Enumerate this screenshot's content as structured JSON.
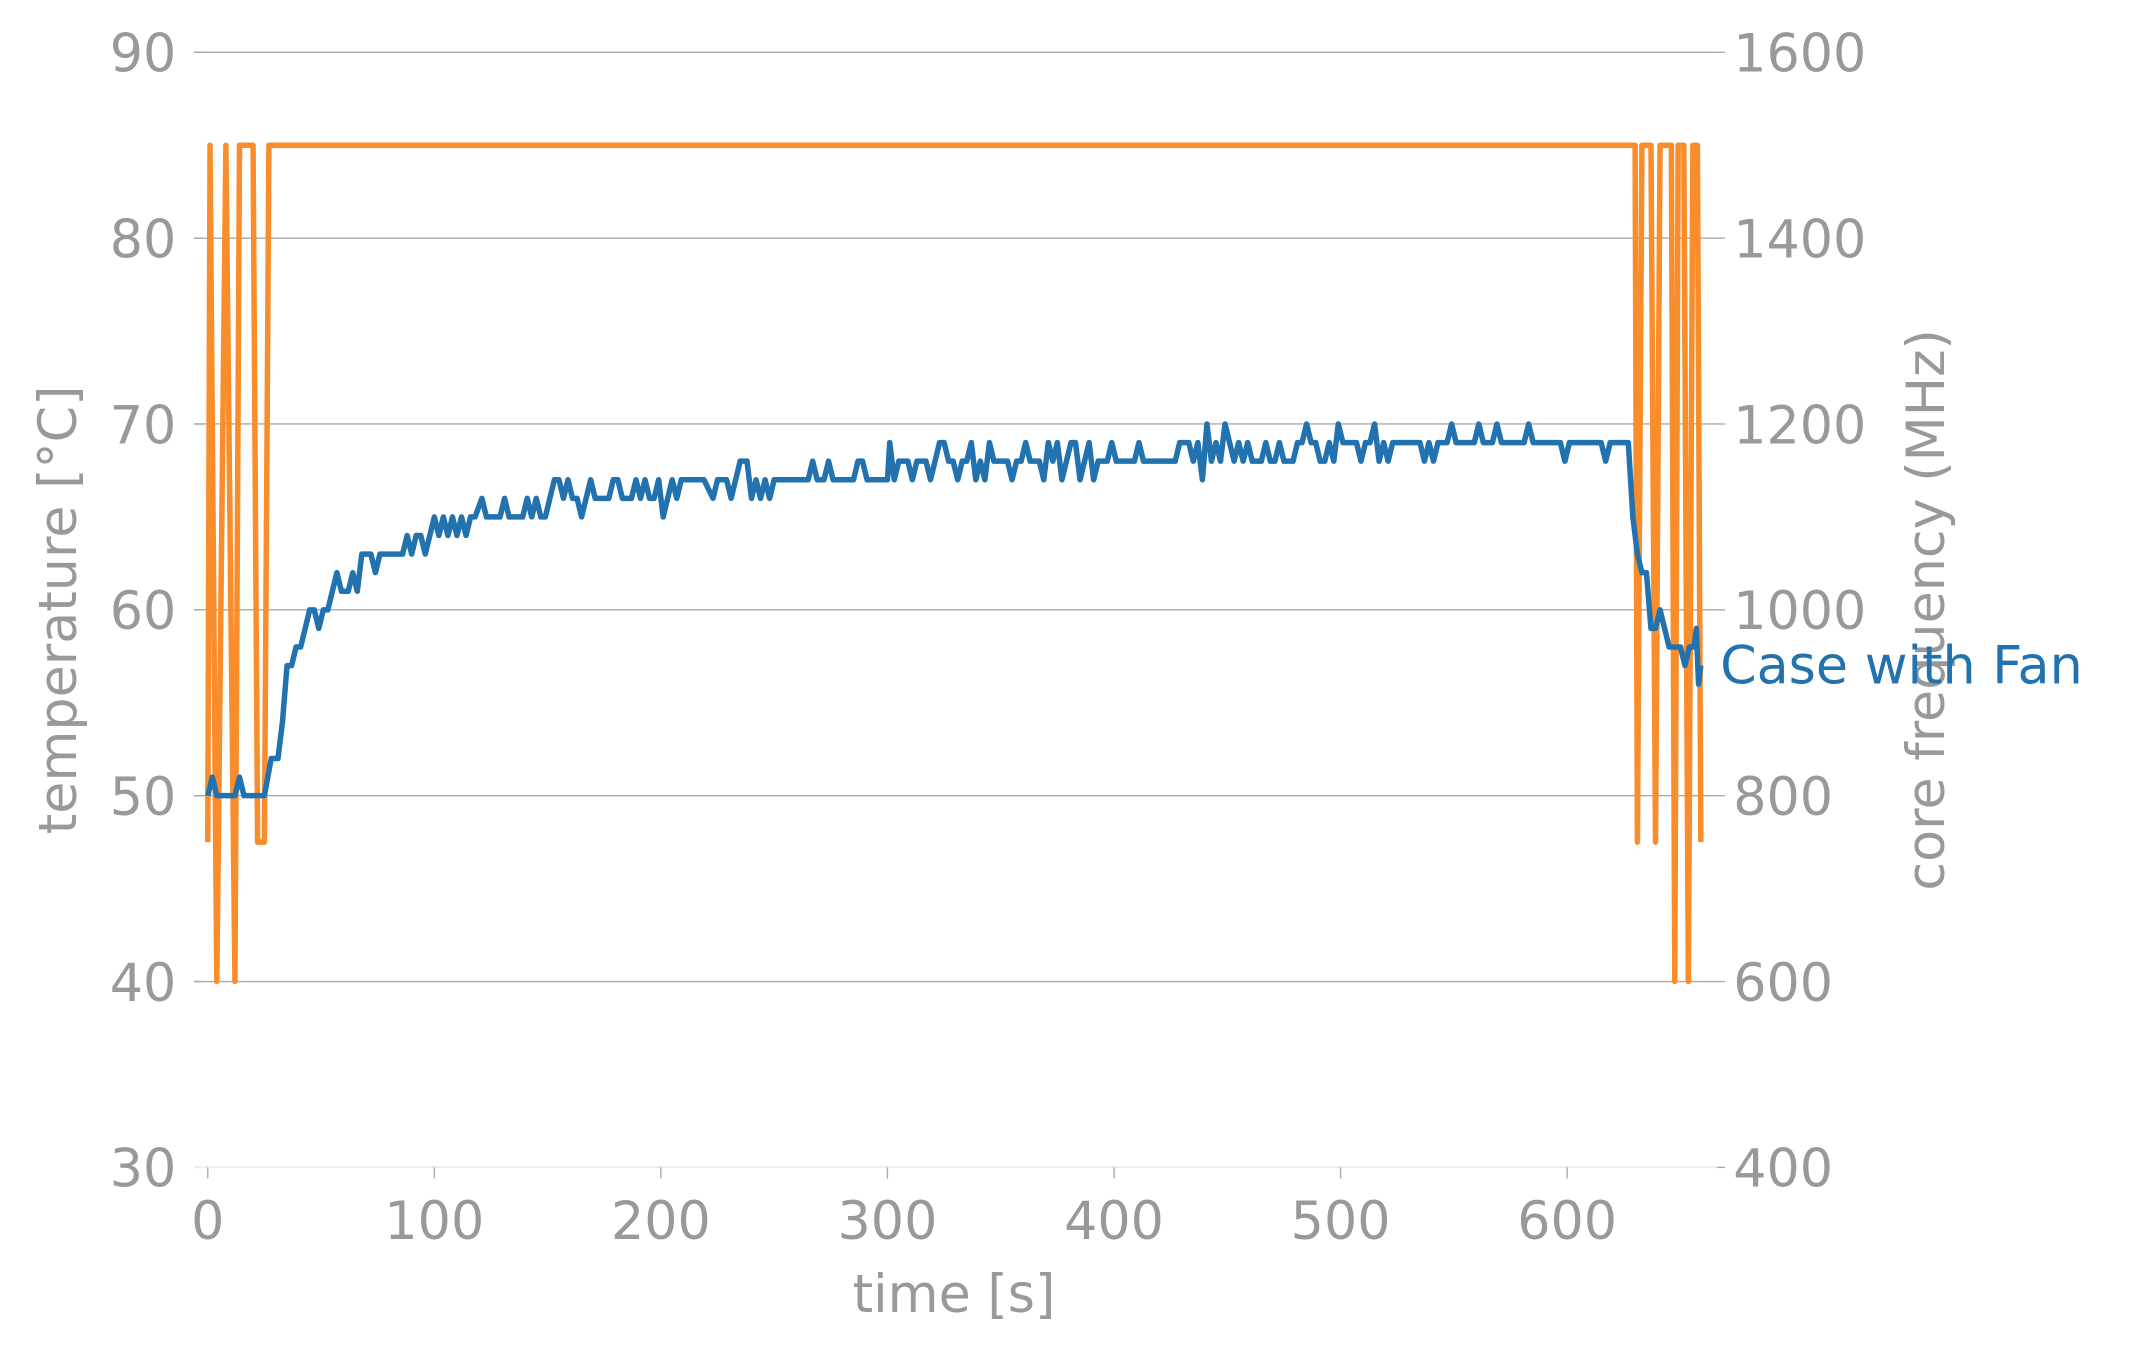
{
  "chart_data": {
    "type": "line",
    "xlabel": "time [s]",
    "ylabel": "temperature [°C]",
    "y2label": "core frequency (MHz)",
    "xlim": [
      -6,
      666
    ],
    "xticks": [
      0,
      100,
      200,
      300,
      400,
      500,
      600
    ],
    "ylim": [
      30,
      90
    ],
    "yticks": [
      30,
      40,
      50,
      60,
      70,
      80,
      90
    ],
    "y2lim": [
      400,
      1600
    ],
    "y2ticks": [
      400,
      600,
      800,
      1000,
      1200,
      1400,
      1600
    ],
    "grid": true,
    "series": [
      {
        "name": "Case with Fan",
        "color": "#2272b0",
        "axis": "y",
        "x": [
          0,
          2,
          4,
          12,
          14,
          16,
          25,
          28,
          31,
          33,
          35,
          37,
          39,
          41,
          45,
          47,
          49,
          51,
          53,
          57,
          59,
          62,
          64,
          66,
          68,
          72,
          74,
          76,
          86,
          88,
          90,
          92,
          94,
          96,
          100,
          102,
          104,
          106,
          108,
          110,
          112,
          114,
          116,
          118,
          121,
          123,
          129,
          131,
          133,
          139,
          141,
          143,
          145,
          147,
          149,
          153,
          155,
          157,
          159,
          161,
          163,
          165,
          169,
          171,
          177,
          179,
          181,
          183,
          187,
          189,
          191,
          193,
          195,
          197,
          199,
          201,
          205,
          207,
          209,
          219,
          223,
          225,
          229,
          231,
          235,
          238,
          240,
          242,
          244,
          246,
          248,
          250,
          265,
          267,
          269,
          272,
          274,
          276,
          285,
          287,
          289,
          291,
          300,
          301,
          303,
          305,
          309,
          311,
          313,
          317,
          319,
          323,
          325,
          327,
          329,
          331,
          333,
          335,
          337,
          339,
          341,
          343,
          345,
          347,
          353,
          355,
          357,
          359,
          361,
          363,
          367,
          369,
          371,
          373,
          375,
          377,
          379,
          381,
          383,
          385,
          387,
          389,
          391,
          393,
          397,
          399,
          401,
          409,
          411,
          413,
          427,
          429,
          433,
          435,
          437,
          439,
          441,
          443,
          445,
          447,
          449,
          451,
          453,
          455,
          457,
          459,
          461,
          465,
          467,
          469,
          471,
          473,
          475,
          479,
          481,
          483,
          485,
          487,
          489,
          491,
          493,
          495,
          497,
          499,
          501,
          507,
          509,
          511,
          513,
          515,
          517,
          519,
          521,
          523,
          535,
          537,
          539,
          541,
          543,
          547,
          549,
          551,
          559,
          561,
          563,
          567,
          569,
          571,
          581,
          583,
          585,
          597,
          599,
          601,
          615,
          617,
          619,
          627,
          629,
          631,
          633,
          635,
          637,
          639,
          641,
          643,
          645,
          650,
          652,
          654,
          656,
          657,
          658,
          659
        ],
        "values": [
          50,
          51,
          50,
          50,
          51,
          50,
          50,
          52,
          52,
          54,
          57,
          57,
          58,
          58,
          60,
          60,
          59,
          60,
          60,
          62,
          61,
          61,
          62,
          61,
          63,
          63,
          62,
          63,
          63,
          64,
          63,
          64,
          64,
          63,
          65,
          64,
          65,
          64,
          65,
          64,
          65,
          64,
          65,
          65,
          66,
          65,
          65,
          66,
          65,
          65,
          66,
          65,
          66,
          65,
          65,
          67,
          67,
          66,
          67,
          66,
          66,
          65,
          67,
          66,
          66,
          67,
          67,
          66,
          66,
          67,
          66,
          67,
          66,
          66,
          67,
          65,
          67,
          66,
          67,
          67,
          66,
          67,
          67,
          66,
          68,
          68,
          66,
          67,
          66,
          67,
          66,
          67,
          67,
          68,
          67,
          67,
          68,
          67,
          67,
          68,
          68,
          67,
          67,
          69,
          67,
          68,
          68,
          67,
          68,
          68,
          67,
          69,
          69,
          68,
          68,
          67,
          68,
          68,
          69,
          67,
          68,
          67,
          69,
          68,
          68,
          67,
          68,
          68,
          69,
          68,
          68,
          67,
          69,
          68,
          69,
          67,
          68,
          69,
          69,
          67,
          68,
          69,
          67,
          68,
          68,
          69,
          68,
          68,
          69,
          68,
          68,
          69,
          69,
          68,
          69,
          67,
          70,
          68,
          69,
          68,
          70,
          69,
          68,
          69,
          68,
          69,
          68,
          68,
          69,
          68,
          68,
          69,
          68,
          68,
          69,
          69,
          70,
          69,
          69,
          68,
          68,
          69,
          68,
          70,
          69,
          69,
          68,
          69,
          69,
          70,
          68,
          69,
          68,
          69,
          69,
          68,
          69,
          68,
          69,
          69,
          70,
          69,
          69,
          70,
          69,
          69,
          70,
          69,
          69,
          70,
          69,
          69,
          68,
          69,
          69,
          68,
          69,
          69,
          65,
          63,
          62,
          62,
          59,
          59,
          60,
          59,
          58,
          58,
          57,
          58,
          58,
          59,
          56,
          57
        ]
      },
      {
        "color": "#f98d2b",
        "axis": "y2",
        "x": [
          0,
          1,
          4,
          8,
          12,
          14,
          20,
          22,
          25,
          27,
          630,
          631,
          633,
          637,
          639,
          641,
          646,
          647.5,
          649,
          651.5,
          653.5,
          655.5,
          657.5,
          659
        ],
        "values": [
          750,
          1500,
          600,
          1500,
          600,
          1500,
          1500,
          750,
          750,
          1500,
          1500,
          750,
          1500,
          1500,
          750,
          1500,
          1500,
          600,
          1500,
          1500,
          600,
          1500,
          1500,
          750
        ]
      }
    ]
  }
}
